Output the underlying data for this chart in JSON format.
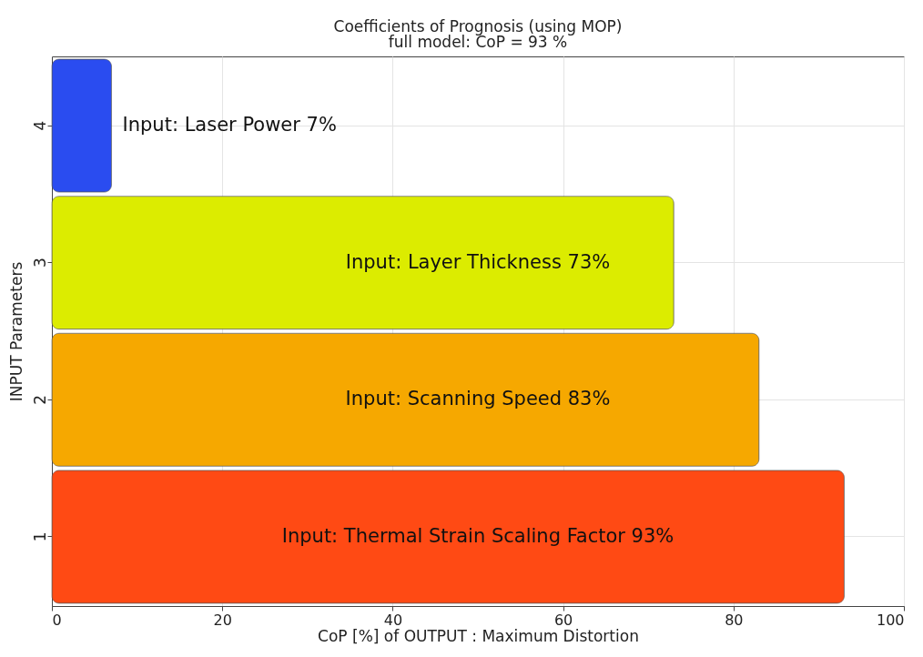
{
  "chart_data": {
    "type": "bar",
    "orientation": "horizontal",
    "title": "Coefficients of Prognosis (using MOP)",
    "subtitle": "full model: CoP = 93 %",
    "xlabel": "CoP [%] of OUTPUT : Maximum Distortion",
    "ylabel": "INPUT Parameters",
    "categories": [
      "4",
      "3",
      "2",
      "1"
    ],
    "values": [
      7,
      73,
      83,
      93
    ],
    "colors": [
      "#2a4cf0",
      "#dcec00",
      "#f6a800",
      "#ff4a14"
    ],
    "value_labels": [
      "Input: Laser Power 7%",
      "Input: Layer Thickness 73%",
      "Input: Scanning Speed 83%",
      "Input: Thermal Strain Scaling Factor 93%"
    ],
    "xlim": [
      0,
      100
    ],
    "xticks": [
      0,
      20,
      40,
      60,
      80,
      100
    ],
    "grid": true
  }
}
